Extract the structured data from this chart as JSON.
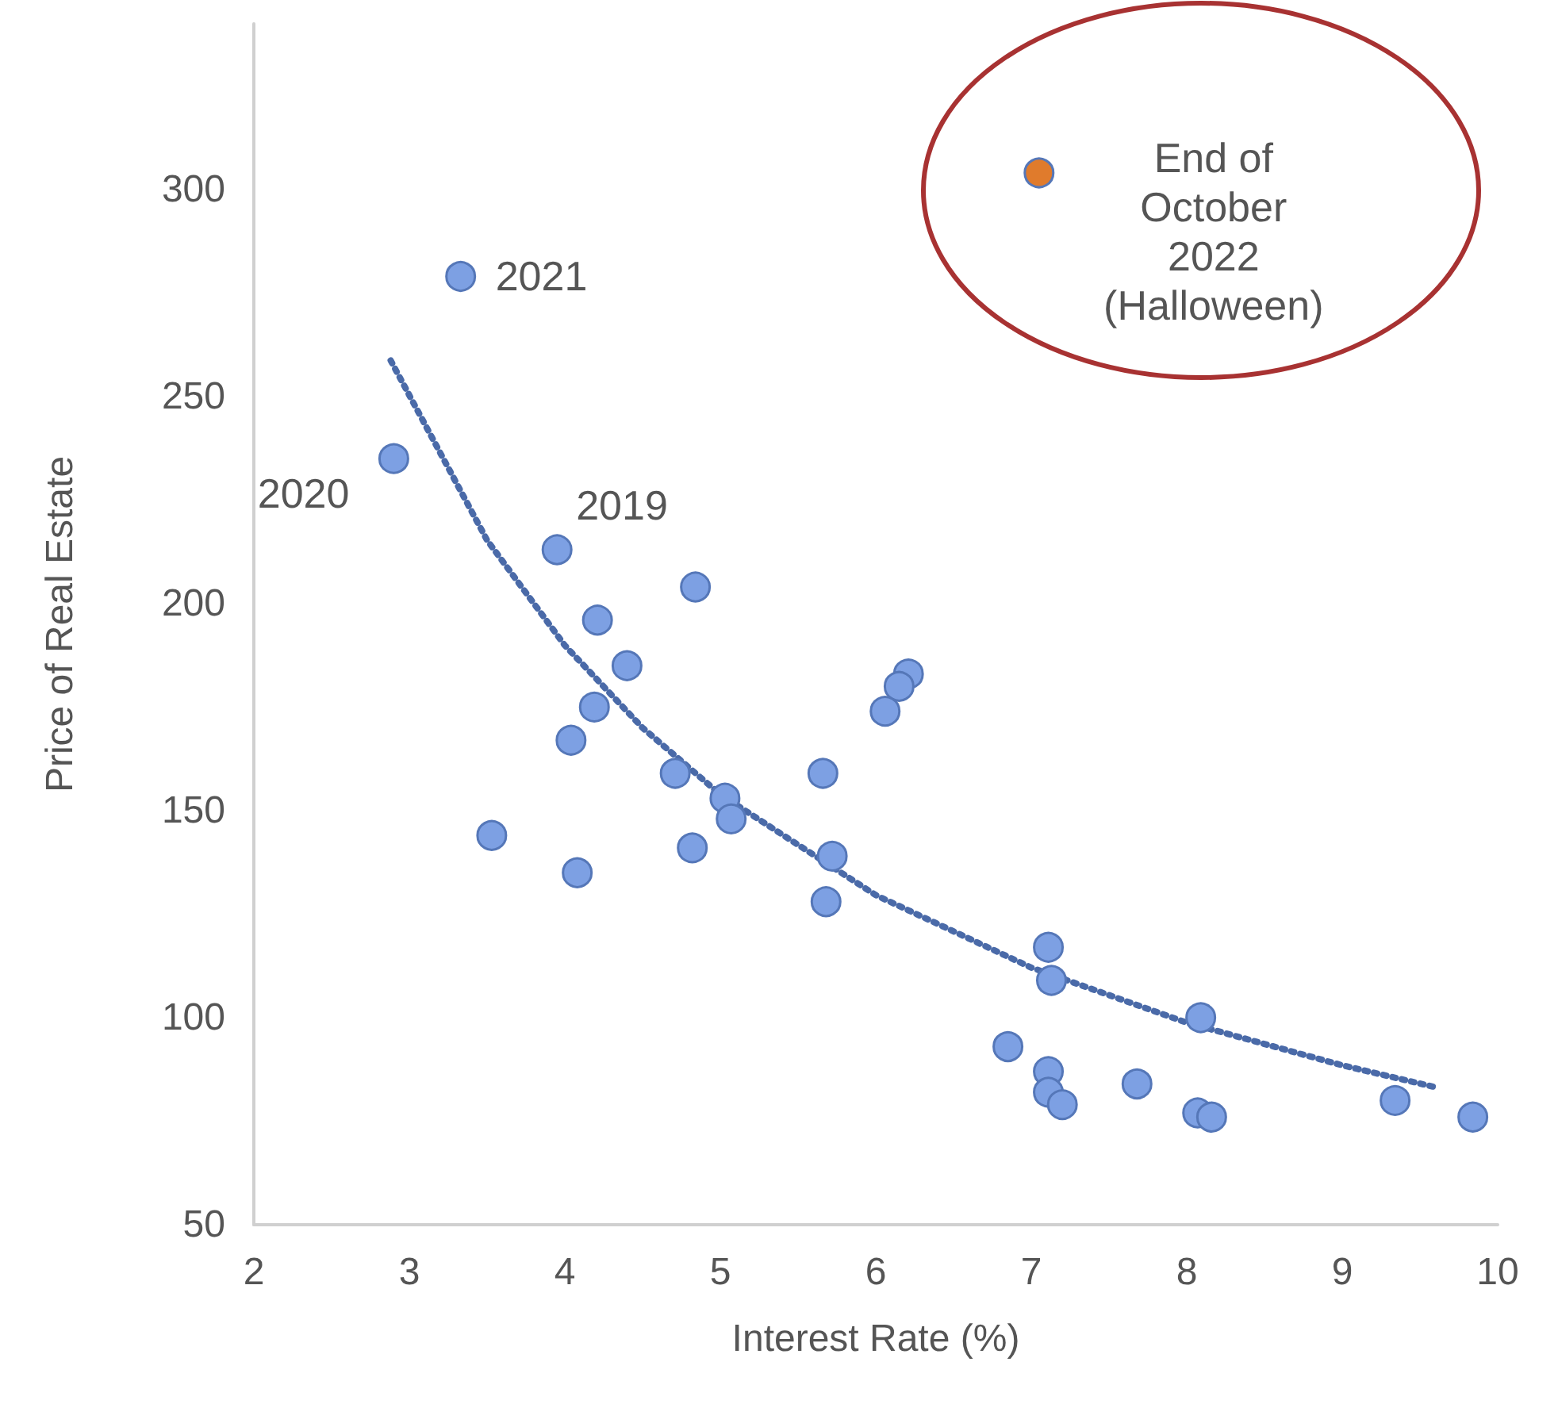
{
  "chart_data": {
    "type": "scatter",
    "xlabel": "Interest Rate (%)",
    "ylabel": "Price of Real Estate",
    "xlim": [
      2,
      10
    ],
    "xticks": [
      2,
      3,
      4,
      5,
      6,
      7,
      8,
      9,
      10
    ],
    "ylim": [
      50,
      340
    ],
    "yticks": [
      50,
      100,
      150,
      200,
      250,
      300
    ],
    "marker": "circle",
    "series": [
      {
        "color": "#7da0e3",
        "x": [
          3.33,
          2.9,
          3.95,
          4.21,
          4.84,
          4.4,
          4.19,
          4.04,
          4.71,
          5.03,
          5.07,
          4.82,
          3.53,
          4.08,
          5.66,
          5.72,
          5.68,
          6.21,
          6.15,
          6.06,
          7.11,
          7.13,
          8.09,
          6.85,
          7.11,
          7.11,
          7.2,
          7.68,
          8.07,
          8.16,
          9.34,
          9.84
        ],
        "values": [
          279,
          235,
          213,
          196,
          204,
          185,
          175,
          167,
          159,
          153,
          148,
          141,
          144,
          135,
          159,
          139,
          128,
          183,
          180,
          174,
          117,
          109,
          100,
          93,
          87,
          82,
          79,
          84,
          77,
          76,
          80,
          76
        ]
      },
      {
        "type": "line",
        "color": "#4a6aa8",
        "line_style": "dotted",
        "marker": "none",
        "x": [
          2.88,
          3.5,
          4,
          4.5,
          5,
          6,
          7,
          8,
          9,
          9.59
        ],
        "values": [
          258.7,
          215.3,
          189.9,
          170.0,
          153.9,
          129.6,
          112.1,
          98.8,
          88.5,
          83.3
        ]
      },
      {
        "color": "#e07b2c",
        "x": [
          7.05
        ],
        "values": [
          304
        ]
      }
    ],
    "annotations": [
      {
        "text": "2021",
        "x": 3.33,
        "y": 279
      },
      {
        "text": "2020",
        "x": 2.9,
        "y": 235
      },
      {
        "text": "2019",
        "x": 3.95,
        "y": 213
      },
      {
        "text": "End of\nOctober\n2022\n(Halloween)",
        "x": 7.05,
        "y": 304
      }
    ]
  }
}
